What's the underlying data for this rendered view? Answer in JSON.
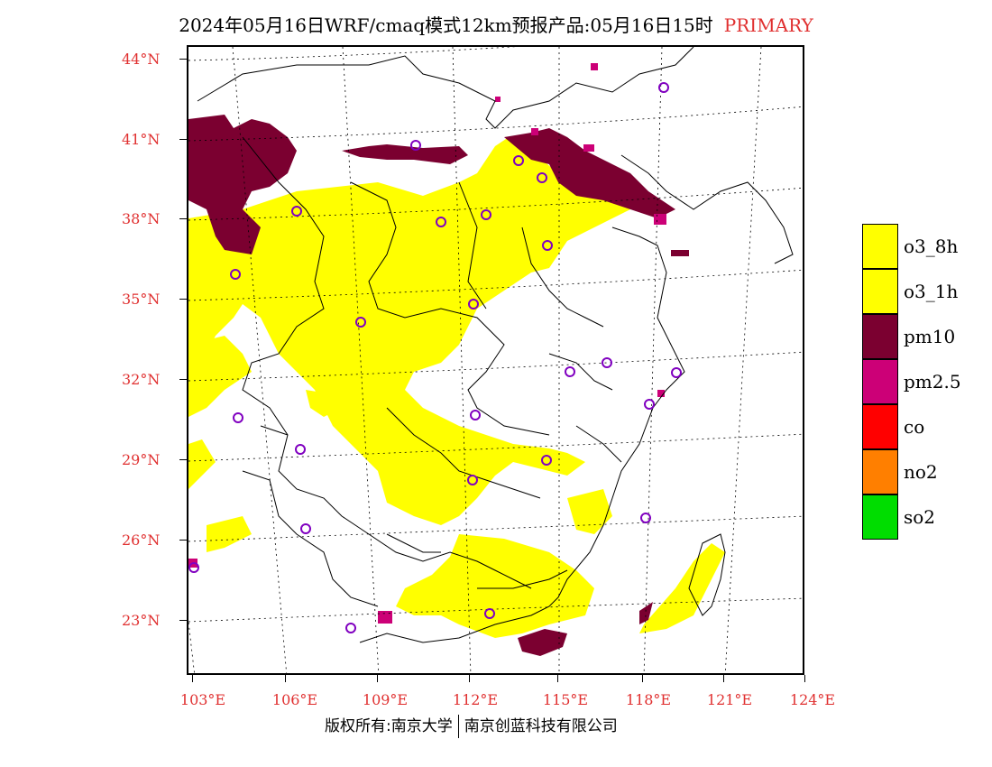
{
  "title": "2024年05月16日WRF/cmaq模式12km预报产品:05月16日15时",
  "title_tag": "PRIMARY",
  "lat_labels": [
    "44°N",
    "41°N",
    "38°N",
    "35°N",
    "32°N",
    "29°N",
    "26°N",
    "23°N"
  ],
  "lon_labels": [
    "103°E",
    "106°E",
    "109°E",
    "112°E",
    "115°E",
    "118°E",
    "121°E",
    "124°E"
  ],
  "legend": [
    {
      "label": "o3_8h",
      "color": "#ffff00"
    },
    {
      "label": "o3_1h",
      "color": "#ffff00"
    },
    {
      "label": "pm10",
      "color": "#7b0030"
    },
    {
      "label": "pm2.5",
      "color": "#cc0077"
    },
    {
      "label": "co",
      "color": "#ff0000"
    },
    {
      "label": "no2",
      "color": "#ff7f00"
    },
    {
      "label": "so2",
      "color": "#00dd00"
    }
  ],
  "footer_left": "版权所有:南京大学",
  "footer_right": "南京创蓝科技有限公司",
  "colors": {
    "o3": "#ffff00",
    "pm10": "#7b0030",
    "pm25": "#cc0077",
    "station": "#8000c0",
    "label": "#e03030"
  }
}
